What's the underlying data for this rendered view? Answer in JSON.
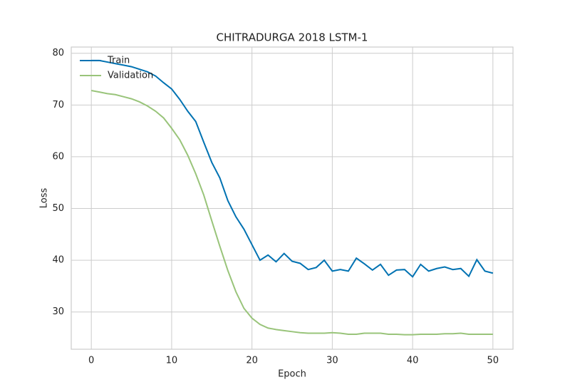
{
  "chart_data": {
    "type": "line",
    "title": "CHITRADURGA 2018 LSTM-1",
    "xlabel": "Epoch",
    "ylabel": "Loss",
    "x": [
      0,
      1,
      2,
      3,
      4,
      5,
      6,
      7,
      8,
      9,
      10,
      11,
      12,
      13,
      14,
      15,
      16,
      17,
      18,
      19,
      20,
      21,
      22,
      23,
      24,
      25,
      26,
      27,
      28,
      29,
      30,
      31,
      32,
      33,
      34,
      35,
      36,
      37,
      38,
      39,
      40,
      41,
      42,
      43,
      44,
      45,
      46,
      47,
      48,
      49,
      50
    ],
    "series": [
      {
        "name": "Train",
        "color": "#0072b2",
        "values": [
          78.6,
          78.6,
          78.3,
          78.0,
          77.7,
          77.4,
          76.9,
          76.4,
          75.6,
          74.3,
          73.1,
          71.1,
          68.8,
          66.8,
          62.8,
          58.9,
          55.9,
          51.5,
          48.4,
          46.0,
          43.0,
          40.0,
          41.0,
          39.7,
          41.3,
          39.8,
          39.4,
          38.2,
          38.6,
          40.0,
          37.9,
          38.2,
          37.9,
          40.4,
          39.3,
          38.1,
          39.2,
          37.1,
          38.1,
          38.2,
          36.8,
          39.2,
          37.9,
          38.4,
          38.7,
          38.2,
          38.4,
          36.9,
          40.1,
          37.9,
          37.5
        ]
      },
      {
        "name": "Validation",
        "color": "#99c47a",
        "values": [
          72.8,
          72.5,
          72.2,
          72.0,
          71.6,
          71.2,
          70.6,
          69.8,
          68.8,
          67.5,
          65.5,
          63.3,
          60.3,
          56.7,
          52.6,
          47.6,
          42.7,
          38.0,
          33.9,
          30.7,
          28.8,
          27.6,
          26.9,
          26.6,
          26.4,
          26.2,
          26.0,
          25.9,
          25.9,
          25.9,
          26.0,
          25.9,
          25.7,
          25.7,
          25.9,
          25.9,
          25.9,
          25.7,
          25.7,
          25.6,
          25.6,
          25.7,
          25.7,
          25.7,
          25.8,
          25.8,
          25.9,
          25.7,
          25.7,
          25.7,
          25.7
        ]
      }
    ],
    "xlim": [
      -2.5,
      52.5
    ],
    "xticks": [
      0,
      10,
      20,
      30,
      40,
      50
    ],
    "ylim": [
      22.8,
      81.2
    ],
    "yticks": [
      30,
      40,
      50,
      60,
      70,
      80
    ],
    "grid": true,
    "legend": "upper left"
  }
}
